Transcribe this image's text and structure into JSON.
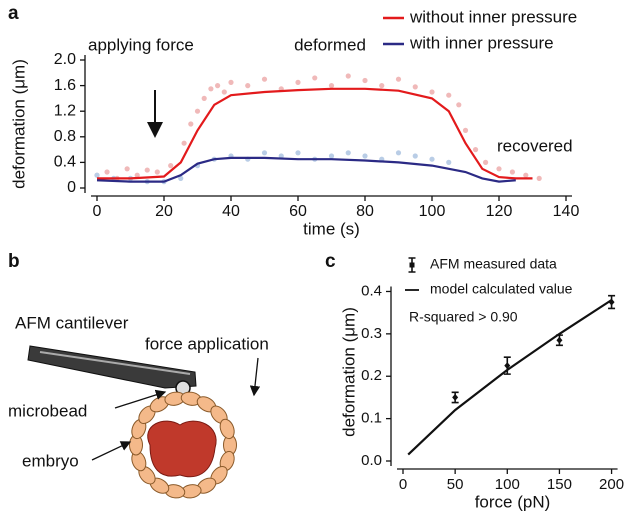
{
  "chart_data": [
    {
      "type": "line",
      "panel": "a",
      "xlabel": "time (s)",
      "ylabel": "deformation (μm)",
      "xlim": [
        0,
        140
      ],
      "ylim": [
        0,
        2
      ],
      "xticks": [
        0,
        20,
        40,
        60,
        80,
        100,
        120,
        140
      ],
      "yticks": [
        0,
        0.4,
        0.8,
        1.2,
        1.6,
        {
          "value": 2,
          "label": "2.0"
        }
      ],
      "legend_position": "upper right",
      "annotations": [
        "applying force",
        "deformed",
        "recovered"
      ],
      "series": [
        {
          "name": "without inner pressure",
          "color": "#e31a1c",
          "x": [
            0,
            10,
            20,
            25,
            30,
            35,
            40,
            50,
            60,
            70,
            80,
            90,
            100,
            105,
            110,
            115,
            120,
            125,
            130
          ],
          "values": [
            0.15,
            0.15,
            0.18,
            0.4,
            0.9,
            1.3,
            1.45,
            1.5,
            1.53,
            1.55,
            1.55,
            1.52,
            1.4,
            1.2,
            0.7,
            0.3,
            0.17,
            0.15,
            0.15
          ],
          "points": {
            "color": "#f0b9b9",
            "x": [
              0,
              3,
              6,
              9,
              12,
              15,
              18,
              22,
              26,
              28,
              30,
              32,
              34,
              36,
              38,
              40,
              45,
              50,
              55,
              60,
              65,
              70,
              75,
              80,
              85,
              90,
              95,
              100,
              105,
              108,
              110,
              113,
              116,
              120,
              124,
              128,
              132
            ],
            "values": [
              0.2,
              0.25,
              0.15,
              0.3,
              0.2,
              0.28,
              0.25,
              0.35,
              0.7,
              1.0,
              1.2,
              1.4,
              1.55,
              1.6,
              1.5,
              1.65,
              1.6,
              1.7,
              1.55,
              1.65,
              1.72,
              1.6,
              1.75,
              1.68,
              1.6,
              1.7,
              1.58,
              1.5,
              1.45,
              1.3,
              0.9,
              0.6,
              0.4,
              0.3,
              0.25,
              0.2,
              0.15
            ]
          }
        },
        {
          "name": "with inner pressure",
          "color": "#2b2a85",
          "x": [
            0,
            10,
            20,
            25,
            30,
            35,
            40,
            50,
            60,
            70,
            80,
            90,
            100,
            105,
            110,
            115,
            120,
            125
          ],
          "values": [
            0.12,
            0.1,
            0.1,
            0.2,
            0.38,
            0.45,
            0.47,
            0.47,
            0.45,
            0.45,
            0.43,
            0.4,
            0.35,
            0.3,
            0.25,
            0.15,
            0.1,
            0.12
          ],
          "points": {
            "color": "#b9cde6",
            "x": [
              0,
              5,
              10,
              15,
              20,
              25,
              30,
              35,
              40,
              45,
              50,
              55,
              60,
              65,
              70,
              75,
              80,
              85,
              90,
              95,
              100,
              105
            ],
            "values": [
              0.2,
              0.15,
              0.15,
              0.1,
              0.1,
              0.15,
              0.35,
              0.45,
              0.5,
              0.45,
              0.55,
              0.5,
              0.55,
              0.45,
              0.5,
              0.55,
              0.5,
              0.45,
              0.55,
              0.5,
              0.45,
              0.4
            ]
          }
        }
      ]
    },
    {
      "type": "errorbar",
      "panel": "c",
      "xlabel": "force (pN)",
      "ylabel": "deformation (μm)",
      "xlim": [
        0,
        210
      ],
      "ylim": [
        0,
        0.42
      ],
      "xticks": [
        0,
        50,
        100,
        150,
        200
      ],
      "yticks": [
        {
          "value": 0,
          "label": "0.0"
        },
        0.1,
        0.2,
        0.3,
        0.4
      ],
      "legend_position": "upper left",
      "annotations": [
        "R-squared > 0.90"
      ],
      "series": [
        {
          "name": "AFM measured data",
          "color": "#111111",
          "x": [
            50,
            100,
            150,
            200
          ],
          "values": [
            0.15,
            0.225,
            0.285,
            0.375
          ],
          "errors": [
            0.012,
            0.02,
            0.012,
            0.015
          ]
        },
        {
          "name": "model calculated value",
          "color": "#111111",
          "x": [
            5,
            50,
            100,
            150,
            200
          ],
          "values": [
            0.015,
            0.12,
            0.215,
            0.3,
            0.38
          ]
        }
      ]
    }
  ],
  "diagram": {
    "panel": "b",
    "labels": [
      "AFM cantilever",
      "force application",
      "microbead",
      "embryo"
    ]
  }
}
